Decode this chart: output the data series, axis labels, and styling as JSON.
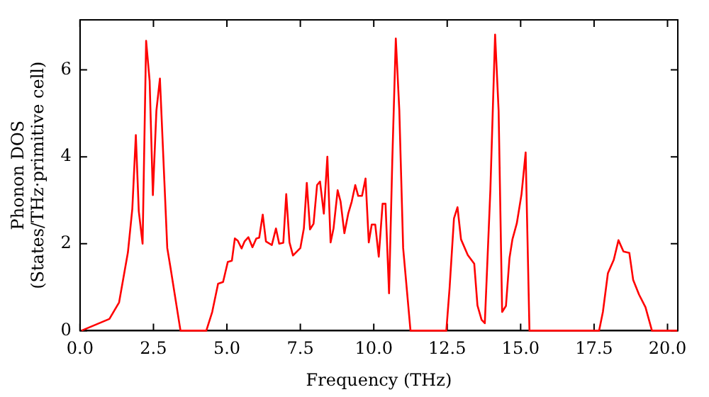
{
  "chart_data": {
    "type": "line",
    "xlabel": "Frequency (THz)",
    "ylabel": "Phonon DOS\n(States/THz·primitive cell)",
    "x": [
      0.05,
      1.0,
      1.33,
      1.63,
      1.78,
      1.9,
      2.0,
      2.13,
      2.25,
      2.37,
      2.48,
      2.6,
      2.72,
      2.97,
      3.08,
      3.42,
      4.3,
      4.5,
      4.7,
      4.87,
      5.03,
      5.17,
      5.27,
      5.37,
      5.5,
      5.6,
      5.73,
      5.87,
      6.0,
      6.1,
      6.22,
      6.33,
      6.53,
      6.67,
      6.78,
      6.92,
      7.02,
      7.13,
      7.25,
      7.5,
      7.62,
      7.72,
      7.83,
      7.95,
      8.07,
      8.17,
      8.3,
      8.42,
      8.53,
      8.63,
      8.77,
      8.87,
      9.0,
      9.13,
      9.25,
      9.37,
      9.47,
      9.6,
      9.72,
      9.83,
      9.93,
      10.05,
      10.17,
      10.3,
      10.4,
      10.52,
      10.63,
      10.75,
      10.87,
      11.0,
      11.25,
      12.47,
      12.58,
      12.73,
      12.85,
      12.97,
      13.2,
      13.42,
      13.53,
      13.67,
      13.78,
      13.97,
      14.13,
      14.25,
      14.37,
      14.5,
      14.62,
      14.72,
      14.87,
      15.03,
      15.17,
      15.3,
      17.67,
      17.8,
      17.97,
      18.17,
      18.33,
      18.5,
      18.7,
      18.83,
      19.03,
      19.25,
      19.47,
      20.33
    ],
    "series": [
      {
        "color": "#ff0000",
        "values": [
          0,
          0.27,
          0.65,
          1.8,
          2.8,
          4.5,
          2.75,
          2.0,
          6.67,
          5.74,
          3.12,
          5.06,
          5.8,
          1.9,
          1.45,
          0,
          0,
          0.43,
          1.08,
          1.12,
          1.58,
          1.61,
          2.12,
          2.07,
          1.89,
          2.05,
          2.15,
          1.92,
          2.12,
          2.14,
          2.67,
          2.05,
          1.97,
          2.35,
          2.0,
          2.02,
          3.14,
          2.03,
          1.73,
          1.9,
          2.35,
          3.4,
          2.33,
          2.46,
          3.35,
          3.43,
          2.69,
          4.0,
          2.03,
          2.35,
          3.23,
          2.97,
          2.24,
          2.69,
          2.97,
          3.35,
          3.1,
          3.1,
          3.5,
          2.03,
          2.44,
          2.44,
          1.7,
          2.92,
          2.92,
          0.86,
          3.9,
          6.72,
          5.06,
          1.9,
          0,
          0,
          0.97,
          2.58,
          2.84,
          2.1,
          1.74,
          1.54,
          0.58,
          0.25,
          0.17,
          3.25,
          6.81,
          5.06,
          0.43,
          0.57,
          1.67,
          2.1,
          2.47,
          3.14,
          4.1,
          0,
          0,
          0.43,
          1.32,
          1.63,
          2.08,
          1.82,
          1.79,
          1.17,
          0.83,
          0.54,
          0,
          0
        ]
      }
    ],
    "xlim": [
      0,
      20.35
    ],
    "ylim": [
      0,
      7.15
    ],
    "xticks": [
      {
        "value": 0,
        "label": "0.0"
      },
      {
        "value": 2.5,
        "label": "2.5"
      },
      {
        "value": 5,
        "label": "5.0"
      },
      {
        "value": 7.5,
        "label": "7.5"
      },
      {
        "value": 10,
        "label": "10.0"
      },
      {
        "value": 12.5,
        "label": "12.5"
      },
      {
        "value": 15,
        "label": "15.0"
      },
      {
        "value": 17.5,
        "label": "17.5"
      },
      {
        "value": 20,
        "label": "20.0"
      }
    ],
    "yticks": [
      0,
      2,
      4,
      6
    ],
    "grid": false,
    "legend": false,
    "marker": "none",
    "line_style": "solid"
  }
}
